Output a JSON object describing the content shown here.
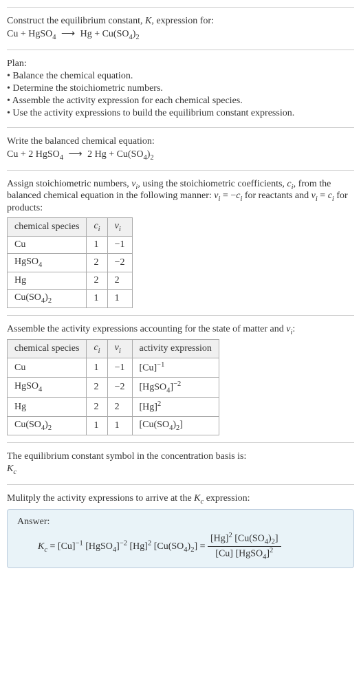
{
  "intro": {
    "line1": "Construct the equilibrium constant, <i>K</i>, expression for:",
    "equation": "Cu + HgSO<sub>4</sub> <span class='arrow'>⟶</span> Hg + Cu(SO<sub>4</sub>)<sub>2</sub>"
  },
  "plan": {
    "heading": "Plan:",
    "items": [
      "• Balance the chemical equation.",
      "• Determine the stoichiometric numbers.",
      "• Assemble the activity expression for each chemical species.",
      "• Use the activity expressions to build the equilibrium constant expression."
    ]
  },
  "balanced": {
    "heading": "Write the balanced chemical equation:",
    "equation": "Cu + 2 HgSO<sub>4</sub> <span class='arrow'>⟶</span> 2 Hg + Cu(SO<sub>4</sub>)<sub>2</sub>"
  },
  "stoich": {
    "text": "Assign stoichiometric numbers, <i>ν<sub>i</sub></i>, using the stoichiometric coefficients, <i>c<sub>i</sub></i>, from the balanced chemical equation in the following manner: <i>ν<sub>i</sub></i> = −<i>c<sub>i</sub></i> for reactants and <i>ν<sub>i</sub></i> = <i>c<sub>i</sub></i> for products:",
    "headers": [
      "chemical species",
      "<i>c<sub>i</sub></i>",
      "<i>ν<sub>i</sub></i>"
    ],
    "rows": [
      [
        "Cu",
        "1",
        "−1"
      ],
      [
        "HgSO<sub>4</sub>",
        "2",
        "−2"
      ],
      [
        "Hg",
        "2",
        "2"
      ],
      [
        "Cu(SO<sub>4</sub>)<sub>2</sub>",
        "1",
        "1"
      ]
    ]
  },
  "activity": {
    "text": "Assemble the activity expressions accounting for the state of matter and <i>ν<sub>i</sub></i>:",
    "headers": [
      "chemical species",
      "<i>c<sub>i</sub></i>",
      "<i>ν<sub>i</sub></i>",
      "activity expression"
    ],
    "rows": [
      [
        "Cu",
        "1",
        "−1",
        "[Cu]<sup>−1</sup>"
      ],
      [
        "HgSO<sub>4</sub>",
        "2",
        "−2",
        "[HgSO<sub>4</sub>]<sup>−2</sup>"
      ],
      [
        "Hg",
        "2",
        "2",
        "[Hg]<sup>2</sup>"
      ],
      [
        "Cu(SO<sub>4</sub>)<sub>2</sub>",
        "1",
        "1",
        "[Cu(SO<sub>4</sub>)<sub>2</sub>]"
      ]
    ]
  },
  "symbol": {
    "text": "The equilibrium constant symbol in the concentration basis is:",
    "value": "<i>K<sub>c</sub></i>"
  },
  "multiply": {
    "text": "Mulitply the activity expressions to arrive at the <i>K<sub>c</sub></i> expression:"
  },
  "answer": {
    "label": "Answer:",
    "lhs": "<i>K<sub>c</sub></i> = [Cu]<sup>−1</sup> [HgSO<sub>4</sub>]<sup>−2</sup> [Hg]<sup>2</sup> [Cu(SO<sub>4</sub>)<sub>2</sub>] = ",
    "frac_num": "[Hg]<sup>2</sup> [Cu(SO<sub>4</sub>)<sub>2</sub>]",
    "frac_den": "[Cu] [HgSO<sub>4</sub>]<sup>2</sup>"
  },
  "colors": {
    "border": "#cccccc",
    "table_border": "#aaaaaa",
    "table_header_bg": "#f0f0f0",
    "answer_bg": "#e9f3f8",
    "answer_border": "#bbccdd",
    "text": "#333333"
  }
}
